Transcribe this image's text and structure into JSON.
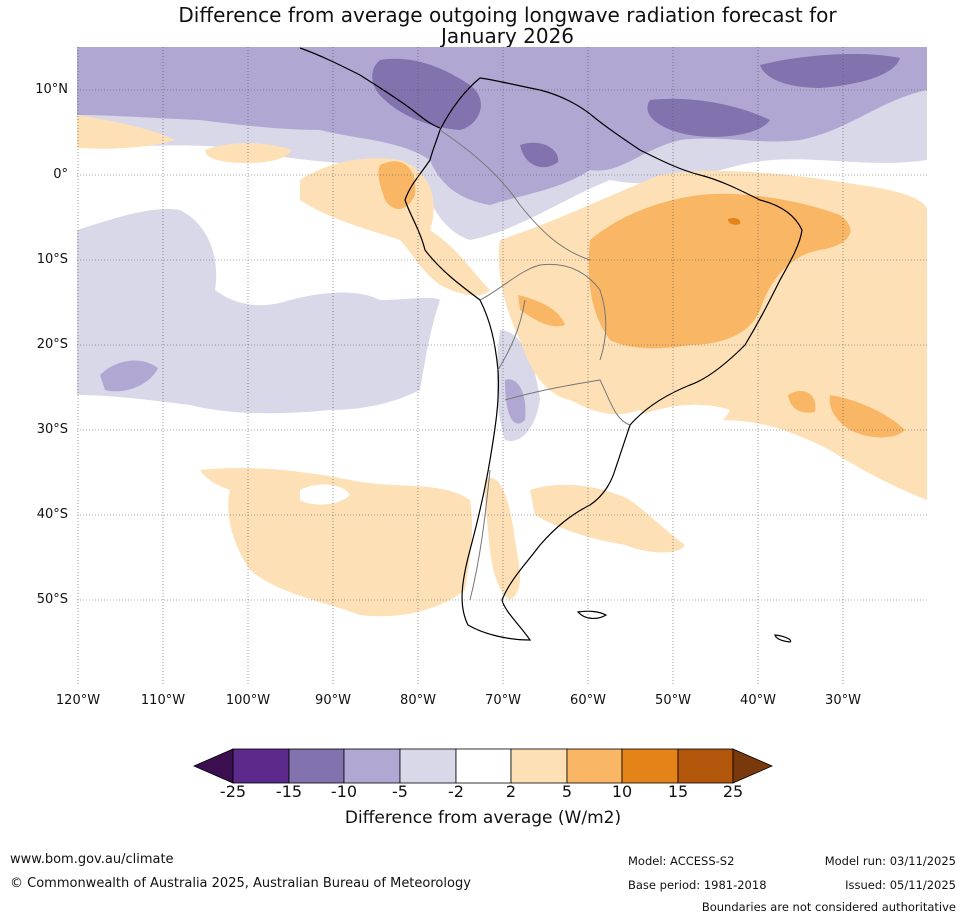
{
  "title_line1": "Difference from average outgoing longwave radiation forecast for",
  "title_line2": "January 2026",
  "lat_labels": [
    "10°N",
    "0°",
    "10°S",
    "20°S",
    "30°S",
    "40°S",
    "50°S"
  ],
  "lon_labels": [
    "120°W",
    "110°W",
    "100°W",
    "90°W",
    "80°W",
    "70°W",
    "60°W",
    "50°W",
    "40°W",
    "30°W"
  ],
  "colorbar": {
    "ticks": [
      "-25",
      "-15",
      "-10",
      "-5",
      "-2",
      "2",
      "5",
      "10",
      "15",
      "25"
    ],
    "colors": [
      "#3b0f4f",
      "#5b2a8a",
      "#8272ad",
      "#b0a8d2",
      "#d8d8e9",
      "#ffffff",
      "#fde0b6",
      "#f9b765",
      "#e38318",
      "#b1560b",
      "#7a380d"
    ],
    "title": "Difference from average (W/m2)"
  },
  "footer": {
    "url": "www.bom.gov.au/climate",
    "copyright": "© Commonwealth of Australia 2025, Australian Bureau of Meteorology",
    "model": "Model: ACCESS-S2",
    "base_period": "Base period: 1981-2018",
    "model_run": "Model run: 03/11/2025",
    "issued": "Issued: 05/11/2025",
    "disclaimer": "Boundaries are not considered authoritative"
  }
}
